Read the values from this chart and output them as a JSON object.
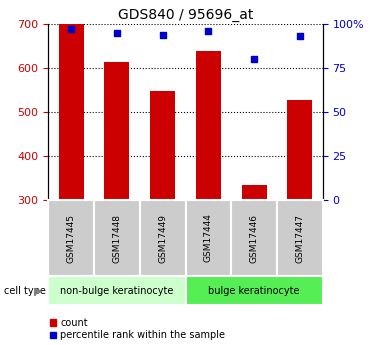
{
  "title": "GDS840 / 95696_at",
  "samples": [
    "GSM17445",
    "GSM17448",
    "GSM17449",
    "GSM17444",
    "GSM17446",
    "GSM17447"
  ],
  "bar_values": [
    700,
    615,
    548,
    640,
    335,
    528
  ],
  "percentile_values": [
    97,
    95,
    94,
    96,
    80,
    93
  ],
  "bar_color": "#cc0000",
  "dot_color": "#0000cc",
  "ymin": 300,
  "ymax": 700,
  "y2min": 0,
  "y2max": 100,
  "yticks": [
    300,
    400,
    500,
    600,
    700
  ],
  "y2ticks": [
    0,
    25,
    50,
    75,
    100
  ],
  "groups": [
    {
      "label": "non-bulge keratinocyte",
      "indices": [
        0,
        1,
        2
      ],
      "color": "#ccffcc"
    },
    {
      "label": "bulge keratinocyte",
      "indices": [
        3,
        4,
        5
      ],
      "color": "#55ee55"
    }
  ],
  "cell_type_label": "cell type",
  "legend_count_label": "count",
  "legend_percentile_label": "percentile rank within the sample",
  "bar_width": 0.55,
  "tick_label_bg": "#cccccc",
  "bg_color": "#ffffff"
}
